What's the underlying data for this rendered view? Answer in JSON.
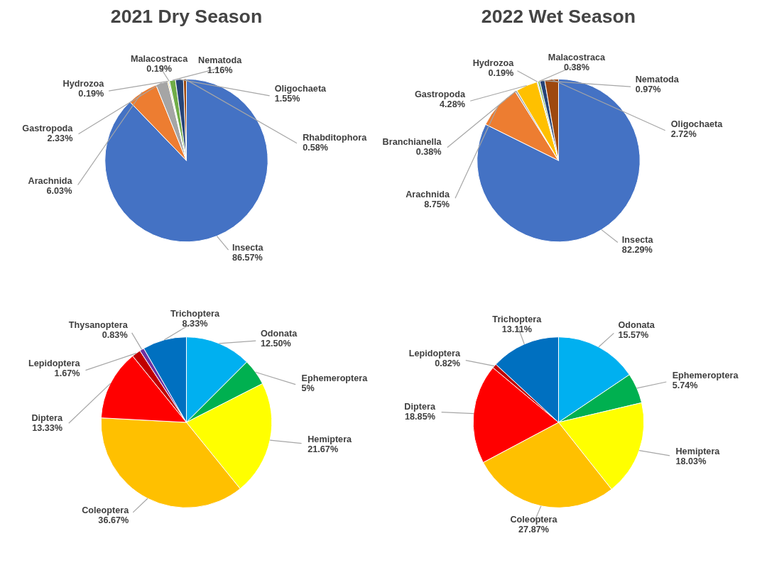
{
  "chart_data": [
    {
      "type": "pie",
      "title": "2021 Dry Season",
      "categories": [
        "Insecta",
        "Arachnida",
        "Gastropoda",
        "Hydrozoa",
        "Malacostraca",
        "Nematoda",
        "Oligochaeta",
        "Rhabditophora"
      ],
      "values": [
        86.57,
        6.03,
        2.33,
        0.19,
        0.19,
        1.16,
        1.55,
        0.58
      ],
      "value_labels": [
        "86.57%",
        "6.03%",
        "2.33%",
        "0.19%",
        "0.19%",
        "1.16%",
        "1.55%",
        "0.58%"
      ],
      "colors": [
        "#4472c4",
        "#ed7d31",
        "#a5a5a5",
        "#ffc000",
        "#5b9bd5",
        "#70ad47",
        "#264478",
        "#9e480e"
      ]
    },
    {
      "type": "pie",
      "title": "2022 Wet Season",
      "categories": [
        "Insecta",
        "Arachnida",
        "Branchianella",
        "Gastropoda",
        "Hydrozoa",
        "Malacostraca",
        "Nematoda",
        "Oligochaeta"
      ],
      "values": [
        82.29,
        8.75,
        0.38,
        4.28,
        0.19,
        0.38,
        0.97,
        2.72
      ],
      "value_labels": [
        "82.29%",
        "8.75%",
        "0.38%",
        "4.28%",
        "0.19%",
        "0.38%",
        "0.97%",
        "2.72%"
      ],
      "colors": [
        "#4472c4",
        "#ed7d31",
        "#a5a5a5",
        "#ffc000",
        "#5b9bd5",
        "#70ad47",
        "#264478",
        "#9e480e"
      ]
    },
    {
      "type": "pie",
      "categories": [
        "Odonata",
        "Ephemeroptera",
        "Hemiptera",
        "Coleoptera",
        "Diptera",
        "Lepidoptera",
        "Thysanoptera",
        "Trichoptera"
      ],
      "values": [
        12.5,
        5,
        21.67,
        36.67,
        13.33,
        1.67,
        0.83,
        8.33
      ],
      "value_labels": [
        "12.50%",
        "5%",
        "21.67%",
        "36.67%",
        "13.33%",
        "1.67%",
        "0.83%",
        "8.33%"
      ],
      "colors": [
        "#00b0f0",
        "#00b050",
        "#ffff00",
        "#ffc000",
        "#ff0000",
        "#c00000",
        "#7030a0",
        "#0070c0"
      ]
    },
    {
      "type": "pie",
      "categories": [
        "Odonata",
        "Ephemeroptera",
        "Hemiptera",
        "Coleoptera",
        "Diptera",
        "Lepidoptera",
        "Trichoptera"
      ],
      "values": [
        15.57,
        5.74,
        18.03,
        27.87,
        18.85,
        0.82,
        13.11
      ],
      "value_labels": [
        "15.57%",
        "5.74%",
        "18.03%",
        "27.87%",
        "18.85%",
        "0.82%",
        "13.11%"
      ],
      "colors": [
        "#00b0f0",
        "#00b050",
        "#ffff00",
        "#ffc000",
        "#ff0000",
        "#c00000",
        "#0070c0"
      ]
    }
  ]
}
